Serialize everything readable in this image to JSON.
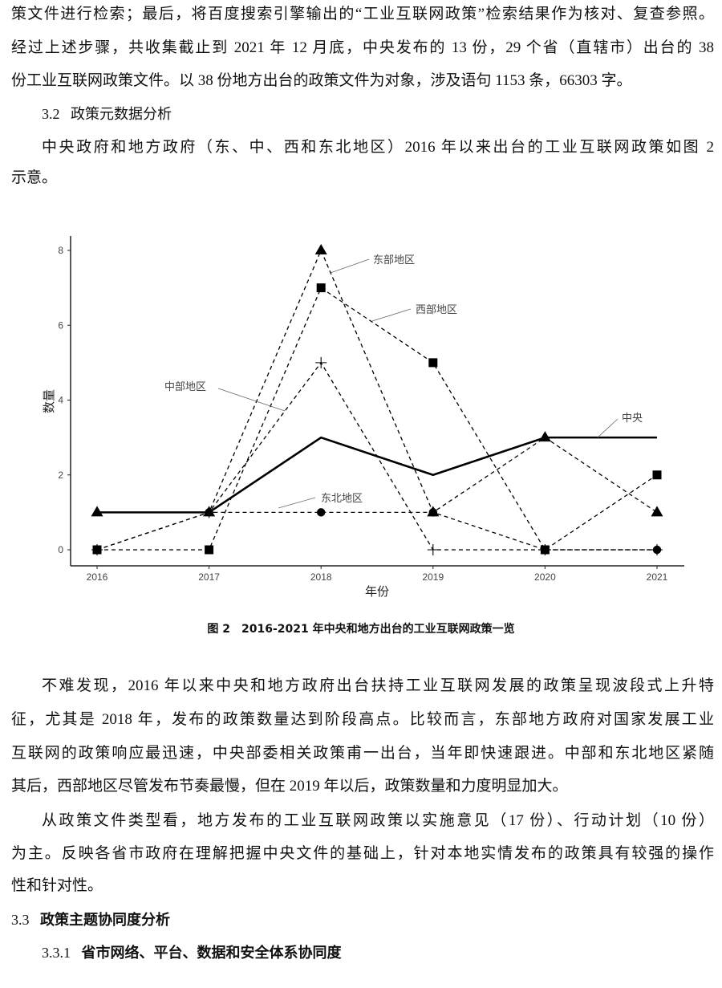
{
  "intro": {
    "lines": [
      "策文件进行检索；最后，将百度搜索引擎输出的“工业互联网政策”检索结果作为核对、复查参照。",
      "经过上述步骤，共收集截止到 2021 年 12 月底，中央发布的 13 份，29 个省（直辖市）出台的 38",
      "份工业互联网政策文件。以 38 份地方出台的政策文件为对象，涉及语句 1153 条，66303 字。"
    ]
  },
  "section_3_2": {
    "number": "3.2",
    "title": "政策元数据分析"
  },
  "para_fig": {
    "lines": [
      "中央政府和地方政府（东、中、西和东北地区）2016 年以来出台的工业互联网政策如图 2",
      "示意。"
    ]
  },
  "chart_data": {
    "type": "line",
    "xlabel": "年份",
    "ylabel": "数量",
    "x": [
      2016,
      2017,
      2018,
      2019,
      2020,
      2021
    ],
    "yticks": [
      0,
      2,
      4,
      6,
      8
    ],
    "ylim": [
      0,
      8
    ],
    "grid": false,
    "legend": "direct labels",
    "series": [
      {
        "name": "中央",
        "values": [
          1,
          1,
          3,
          2,
          3,
          3
        ],
        "marker": "none",
        "style": "solid",
        "color": "#000000"
      },
      {
        "name": "东部地区",
        "values": [
          1,
          1,
          8,
          1,
          3,
          1
        ],
        "marker": "triangle",
        "style": "dashed",
        "color": "#000000"
      },
      {
        "name": "西部地区",
        "values": [
          0,
          0,
          7,
          5,
          0,
          2
        ],
        "marker": "square",
        "style": "dashed",
        "color": "#000000"
      },
      {
        "name": "中部地区",
        "values": [
          0,
          1,
          5,
          0,
          0,
          0
        ],
        "marker": "plus",
        "style": "dashed",
        "color": "#000000"
      },
      {
        "name": "东北地区",
        "values": [
          0,
          1,
          1,
          1,
          0,
          0
        ],
        "marker": "circle",
        "style": "dashed",
        "color": "#000000"
      }
    ]
  },
  "caption": "图 2　2016-2021 年中央和地方出台的工业互联网政策一览",
  "para_find": {
    "lines": [
      "不难发现，2016 年以来中央和地方政府出台扶持工业互联网发展的政策呈现波段式上升特",
      "征，尤其是 2018 年，发布的政策数量达到阶段高点。比较而言，东部地方政府对国家发展工业",
      "互联网的政策响应最迅速，中央部委相关政策甫一出台，当年即快速跟进。中部和东北地区紧随",
      "其后，西部地区尽管发布节奏最慢，但在 2019 年以后，政策数量和力度明显加大。"
    ]
  },
  "para_type": {
    "lines": [
      "从政策文件类型看，地方发布的工业互联网政策以实施意见（17 份）、行动计划（10 份）",
      "为主。反映各省市政府在理解把握中央文件的基础上，针对本地实情发布的政策具有较强的操作",
      "性和针对性。"
    ]
  },
  "section_3_3": {
    "number": "3.3",
    "title": "政策主题协同度分析"
  },
  "section_3_3_1": {
    "number": "3.3.1",
    "title": "省市网络、平台、数据和安全体系协同度"
  }
}
